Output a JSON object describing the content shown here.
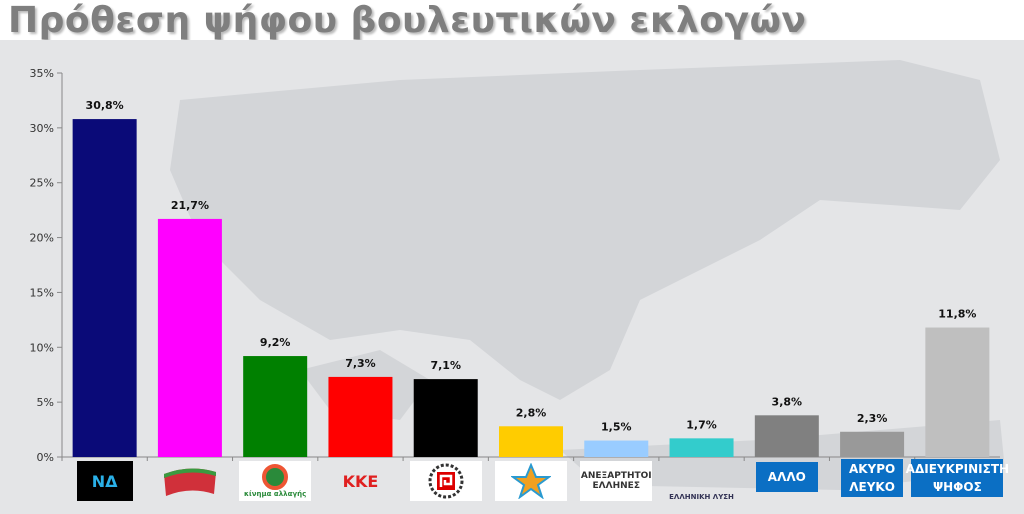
{
  "title": "Πρόθεση ψήφου βουλευτικών εκλογών",
  "colors": {
    "background": "#e4e5e7",
    "map": "#d3d5d8",
    "category_box": "#0b6fc4"
  },
  "chart_data": {
    "type": "bar",
    "title": "Πρόθεση ψήφου βουλευτικών εκλογών",
    "categories": [
      "ΝΔ",
      "ΣΥΡΙΖΑ",
      "κίνημα αλλαγής",
      "ΚΚΕ",
      "Χρυσή Αυγή",
      "Ποτάμι",
      "ΑΝΕΞΑΡΤΗΤΟΙ ΕΛΛΗΝΕΣ",
      "ΕΛΛΗΝΙΚΗ ΛΥΣΗ",
      "ΑΛΛΟ",
      "ΑΚΥΡΟ ΛΕΥΚΟ",
      "ΑΔΙΕΥΚΡΙΝΙΣΤΗ ΨΗΦΟΣ"
    ],
    "values": [
      30.8,
      21.7,
      9.2,
      7.3,
      7.1,
      2.8,
      1.5,
      1.7,
      3.8,
      2.3,
      11.8
    ],
    "data_labels": [
      "30,8%",
      "21,7%",
      "9,2%",
      "7,3%",
      "7,1%",
      "2,8%",
      "1,5%",
      "1,7%",
      "3,8%",
      "2,3%",
      "11,8%"
    ],
    "bar_colors": [
      "#0a0a78",
      "#ff00ff",
      "#008000",
      "#ff0000",
      "#000000",
      "#ffcc00",
      "#99ccff",
      "#33cccc",
      "#808080",
      "#999999",
      "#bfbfbf"
    ],
    "ylim": [
      0,
      35
    ],
    "yticks": [
      "0%",
      "5%",
      "10%",
      "15%",
      "20%",
      "25%",
      "30%",
      "35%"
    ],
    "grid": false,
    "legend": "none"
  },
  "logos": [
    {
      "kind": "image",
      "text": "ΝΔ",
      "icon": "nd-logo"
    },
    {
      "kind": "image",
      "text": "",
      "icon": "syriza-flag-logo"
    },
    {
      "kind": "image",
      "text": "κίνημα αλλαγής",
      "icon": "kinal-logo"
    },
    {
      "kind": "image",
      "text": "ΚΚΕ",
      "icon": "kke-hammer-sickle-logo"
    },
    {
      "kind": "image",
      "text": "",
      "icon": "golden-dawn-logo"
    },
    {
      "kind": "image",
      "text": "",
      "icon": "potami-star-logo"
    },
    {
      "kind": "image",
      "text": "ΑΝΕΞΑΡΤΗΤΟΙ ΕΛΛΗΝΕΣ",
      "icon": "anel-logo"
    },
    {
      "kind": "image",
      "text": "ΕΛΛΗΝΙΚΗ ΛΥΣΗ",
      "icon": "elliniki-lysi-compass-logo"
    },
    {
      "kind": "box",
      "line1": "ΑΛΛΟ",
      "line2": ""
    },
    {
      "kind": "box",
      "line1": "ΑΚΥΡΟ",
      "line2": "ΛΕΥΚΟ"
    },
    {
      "kind": "box",
      "line1": "ΑΔΙΕΥΚΡΙΝΙΣΤΗ",
      "line2": "ΨΗΦΟΣ"
    }
  ]
}
